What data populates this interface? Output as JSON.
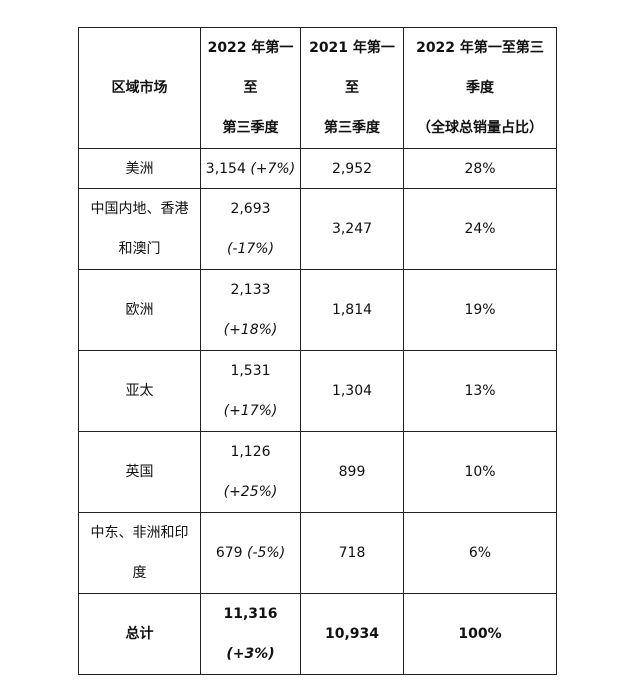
{
  "header": {
    "region": "区域市场",
    "ytd2022": [
      "2022 年第一",
      "至",
      "第三季度"
    ],
    "ytd2021": [
      "2021 年第一",
      "至",
      "第三季度"
    ],
    "share": [
      "2022 年第一至第三",
      "季度",
      "（全球总销量占比）"
    ]
  },
  "rows": [
    {
      "region": [
        "美洲"
      ],
      "v2022": "3,154",
      "chg": "(+7%)",
      "v2021": "2,952",
      "share": "28%"
    },
    {
      "region": [
        "中国内地、香港",
        "和澳门"
      ],
      "v2022": "2,693",
      "chg": "(-17%)",
      "v2021": "3,247",
      "share": "24%"
    },
    {
      "region": [
        "欧洲"
      ],
      "v2022": "2,133",
      "chg": "(+18%)",
      "v2021": "1,814",
      "share": "19%"
    },
    {
      "region": [
        "亚太"
      ],
      "v2022": "1,531",
      "chg": "(+17%)",
      "v2021": "1,304",
      "share": "13%"
    },
    {
      "region": [
        "英国"
      ],
      "v2022": "1,126",
      "chg": "(+25%)",
      "v2021": "899",
      "share": "10%"
    },
    {
      "region": [
        "中东、非洲和印",
        "度"
      ],
      "v2022": "679",
      "chg": "(-5%)",
      "v2021": "718",
      "share": "6%"
    }
  ],
  "total": {
    "label": "总计",
    "v2022": "11,316",
    "chg": "(+3%)",
    "v2021": "10,934",
    "share": "100%"
  }
}
